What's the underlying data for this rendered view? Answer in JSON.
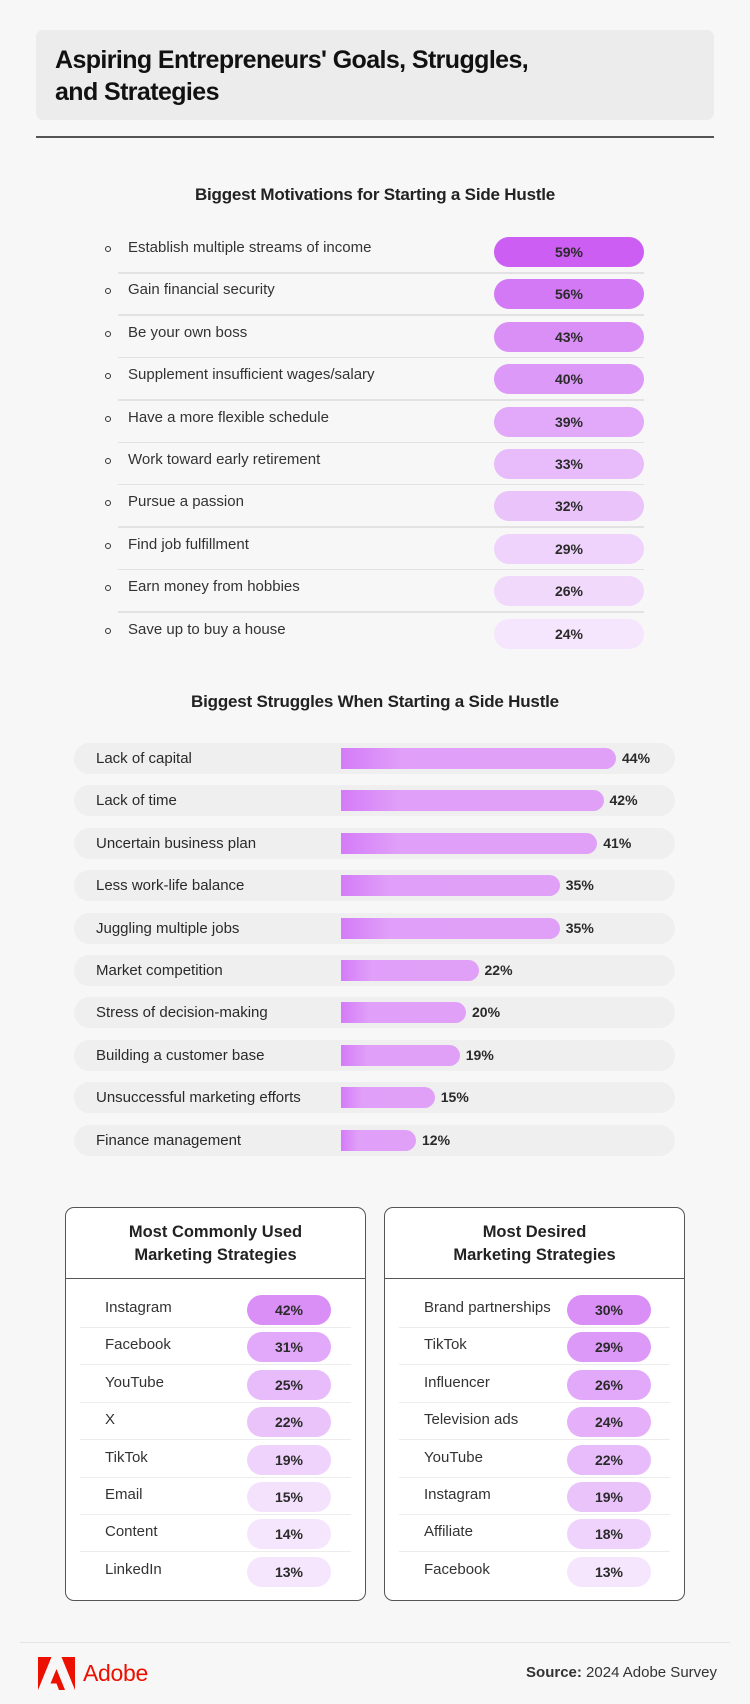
{
  "title": "Aspiring Entrepreneurs' Goals, Struggles, and Strategies",
  "colors": {
    "accent_purple_dark": "#cc5ef4",
    "accent_purple_light": "#f6e6fd",
    "bar_purple": "#e0a0f8",
    "adobe_red": "#eb1000"
  },
  "chart_data": [
    {
      "type": "table",
      "title": "Biggest Motivations for Starting a Side Hustle",
      "categories": [
        "Establish multiple streams of income",
        "Gain financial security",
        "Be your own boss",
        "Supplement insufficient wages/salary",
        "Have a more flexible schedule",
        "Work toward early retirement",
        "Pursue a passion",
        "Find job fulfillment",
        "Earn money from hobbies",
        "Save up to buy a house"
      ],
      "values": [
        59,
        56,
        43,
        40,
        39,
        33,
        32,
        29,
        26,
        24
      ],
      "labels": [
        "59%",
        "56%",
        "43%",
        "40%",
        "39%",
        "33%",
        "32%",
        "29%",
        "26%",
        "24%"
      ],
      "unit": "%"
    },
    {
      "type": "bar",
      "orientation": "horizontal",
      "title": "Biggest Struggles When Starting a Side Hustle",
      "categories": [
        "Lack of capital",
        "Lack of time",
        "Uncertain business plan",
        "Less work-life balance",
        "Juggling multiple jobs",
        "Market competition",
        "Stress of decision-making",
        "Building a customer base",
        "Unsuccessful marketing efforts",
        "Finance management"
      ],
      "values": [
        44,
        42,
        41,
        35,
        35,
        22,
        20,
        19,
        15,
        12
      ],
      "labels": [
        "44%",
        "42%",
        "41%",
        "35%",
        "35%",
        "22%",
        "20%",
        "19%",
        "15%",
        "12%"
      ],
      "unit": "%",
      "xlim": [
        0,
        100
      ],
      "grid": false,
      "xlabel": "",
      "ylabel": ""
    },
    {
      "type": "table",
      "title": "Most Commonly Used Marketing Strategies",
      "categories": [
        "Instagram",
        "Facebook",
        "YouTube",
        "X",
        "TikTok",
        "Email",
        "Content",
        "LinkedIn"
      ],
      "values": [
        42,
        31,
        25,
        22,
        19,
        15,
        14,
        13
      ],
      "labels": [
        "42%",
        "31%",
        "25%",
        "22%",
        "19%",
        "15%",
        "14%",
        "13%"
      ],
      "unit": "%"
    },
    {
      "type": "table",
      "title": "Most Desired Marketing Strategies",
      "categories": [
        "Brand partnerships",
        "TikTok",
        "Influencer",
        "Television ads",
        "YouTube",
        "Instagram",
        "Affiliate",
        "Facebook"
      ],
      "values": [
        30,
        29,
        26,
        24,
        22,
        19,
        18,
        13
      ],
      "labels": [
        "30%",
        "29%",
        "26%",
        "24%",
        "22%",
        "19%",
        "18%",
        "13%"
      ],
      "unit": "%"
    }
  ],
  "sections": {
    "motivations_title": "Biggest Motivations for Starting a Side Hustle",
    "struggles_title": "Biggest Struggles When Starting a Side Hustle",
    "used_title_line1": "Most Commonly Used",
    "used_title_line2": "Marketing Strategies",
    "desired_title_line1": "Most Desired",
    "desired_title_line2": "Marketing Strategies"
  },
  "pill_colors": {
    "motivations": [
      "#cc5ef4",
      "#d479f6",
      "#da8ff7",
      "#dd99f8",
      "#e2a8f9",
      "#e8bcfa",
      "#eac3fb",
      "#efd3fc",
      "#f1d9fc",
      "#f6e6fd"
    ],
    "used": [
      "#da8ff7",
      "#e2a8f9",
      "#e8bcfa",
      "#eac3fb",
      "#efd3fc",
      "#f4e2fd",
      "#f6e6fd",
      "#f6e6fd"
    ],
    "desired": [
      "#da8ff7",
      "#dd99f8",
      "#e2a8f9",
      "#e5aff9",
      "#e8bcfa",
      "#eac3fb",
      "#efd3fc",
      "#f6e6fd"
    ]
  },
  "footer": {
    "brand": "Adobe",
    "logo_icon": "adobe-logo-icon",
    "source_label": "Source:",
    "source_value": " 2024 Adobe Survey"
  }
}
